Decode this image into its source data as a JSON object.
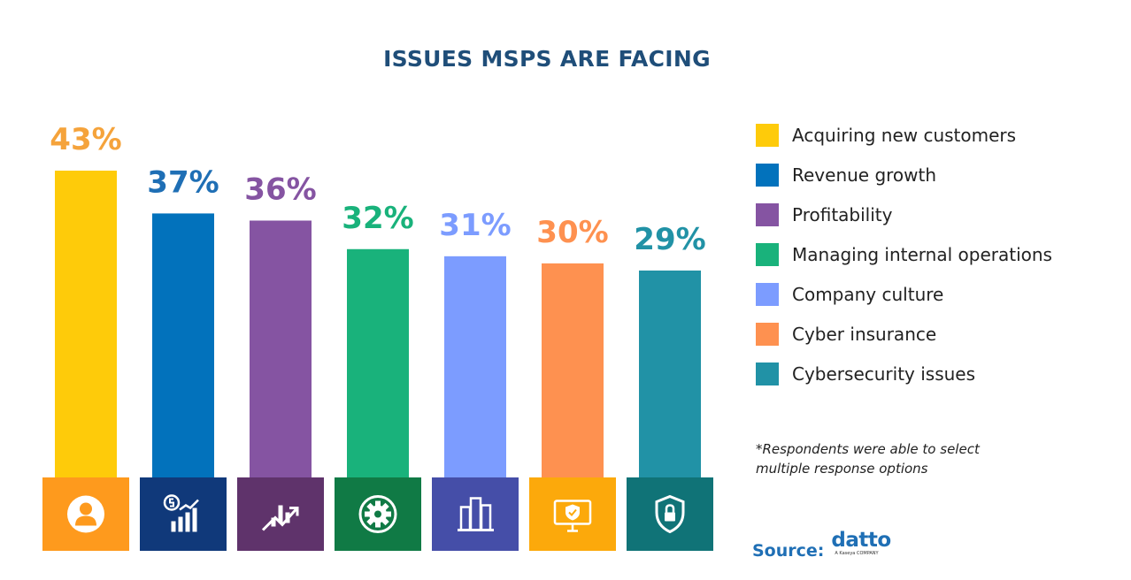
{
  "title": "ISSUES MSPS ARE FACING",
  "chart_data": {
    "type": "bar",
    "title": "ISSUES MSPS ARE FACING",
    "xlabel": "",
    "ylabel": "",
    "ylim": [
      0,
      43
    ],
    "grid": false,
    "legend_position": "right",
    "categories": [
      "Acquiring new customers",
      "Revenue growth",
      "Profitability",
      "Managing internal operations",
      "Company culture",
      "Cyber insurance",
      "Cybersecurity issues"
    ],
    "values": [
      43,
      37,
      36,
      32,
      31,
      30,
      29
    ],
    "data_labels": [
      "43%",
      "37%",
      "36%",
      "32%",
      "31%",
      "30%",
      "29%"
    ],
    "bar_colors": [
      "#fecb0a",
      "#0272bc",
      "#8554a2",
      "#19b27b",
      "#7c9cff",
      "#fe9150",
      "#2192a6"
    ],
    "icon_tile_colors": [
      "#fe9a1d",
      "#10397a",
      "#5f336b",
      "#107a45",
      "#454ea8",
      "#fca90b",
      "#107377"
    ],
    "icons": [
      "user-icon",
      "revenue-chart-icon",
      "profit-trend-icon",
      "gear-cycle-icon",
      "office-buildings-icon",
      "monitor-shield-icon",
      "shield-lock-icon"
    ]
  },
  "legend": [
    {
      "label": "Acquiring new customers",
      "color": "#fecb0a"
    },
    {
      "label": "Revenue growth",
      "color": "#0272bc"
    },
    {
      "label": "Profitability",
      "color": "#8554a2"
    },
    {
      "label": "Managing internal operations",
      "color": "#19b27b"
    },
    {
      "label": "Company culture",
      "color": "#7c9cff"
    },
    {
      "label": "Cyber insurance",
      "color": "#fe9150"
    },
    {
      "label": "Cybersecurity issues",
      "color": "#2192a6"
    }
  ],
  "footnote": "*Respondents were able to select multiple response options",
  "source": {
    "label": "Source:",
    "brand": "datto",
    "brand_tagline": "A Kaseya COMPANY",
    "brand_color": "#1f6fb5"
  }
}
